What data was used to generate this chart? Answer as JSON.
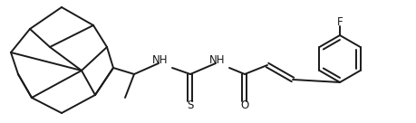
{
  "bg_color": "#ffffff",
  "line_color": "#1a1a1a",
  "figsize": [
    4.6,
    1.36
  ],
  "dpi": 100,
  "lw": 1.4,
  "text_color": "#1a1a1a",
  "label_S": "S",
  "label_O": "O",
  "label_F": "F",
  "label_NH1": "NH",
  "label_NH2": "NH",
  "label_H1": "H",
  "label_H2": "H"
}
